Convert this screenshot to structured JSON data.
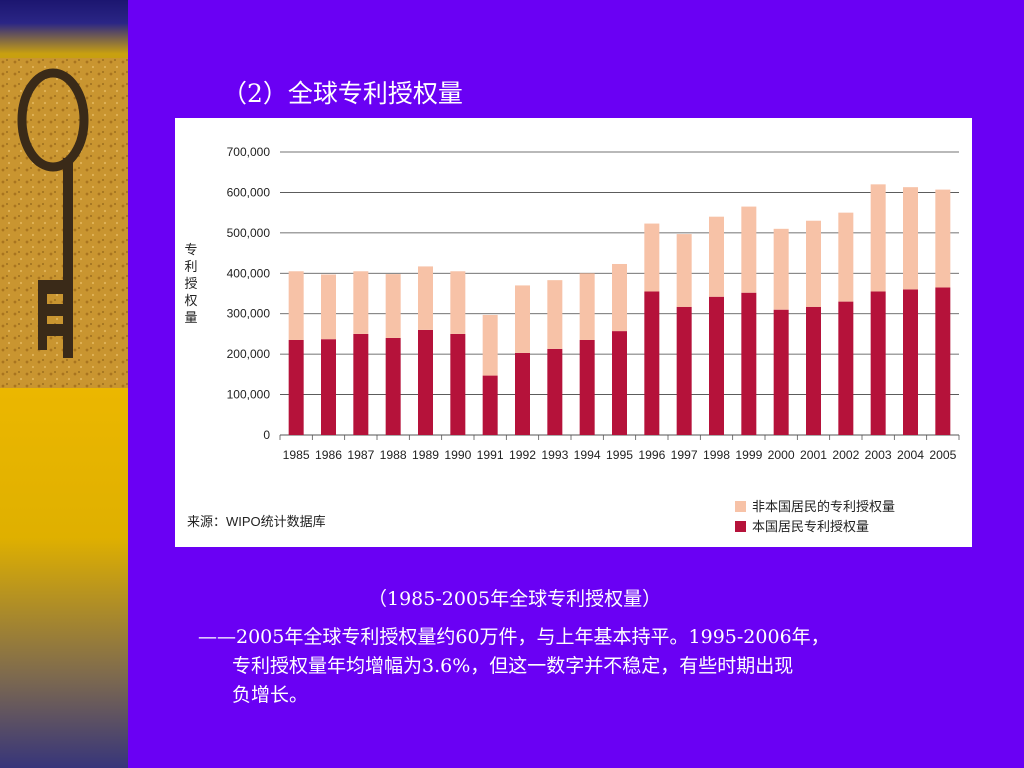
{
  "slide": {
    "title": "（2）全球专利授权量",
    "caption": "（1985-2005年全球专利授权量）",
    "desc_lines": [
      "——2005年全球专利授权量约60万件，与上年基本持平。1995-2006年，",
      "专利授权量年均增幅为3.6%，但这一数字并不稳定，有些时期出现",
      "负增长。"
    ]
  },
  "colors": {
    "background": "#6a00f4",
    "resident": "#b5123a",
    "nonresident": "#f7c2a7",
    "text_light": "#ffffff"
  },
  "chart_data": {
    "type": "bar",
    "stacked": true,
    "ylabel": "专利授权量",
    "source": "来源：WIPO统计数据库",
    "ylim": [
      0,
      700000
    ],
    "yticks": [
      "0",
      "100,000",
      "200,000",
      "300,000",
      "400,000",
      "500,000",
      "600,000",
      "700,000"
    ],
    "grid": true,
    "legend_position": "bottom-right",
    "categories": [
      "1985",
      "1986",
      "1987",
      "1988",
      "1989",
      "1990",
      "1991",
      "1992",
      "1993",
      "1994",
      "1995",
      "1996",
      "1997",
      "1998",
      "1999",
      "2000",
      "2001",
      "2002",
      "2003",
      "2004",
      "2005"
    ],
    "series": [
      {
        "name": "本国居民专利授权量",
        "color": "#b5123a",
        "values": [
          235000,
          237000,
          250000,
          240000,
          260000,
          250000,
          147000,
          203000,
          213000,
          235000,
          257000,
          355000,
          317000,
          342000,
          352000,
          310000,
          317000,
          330000,
          355000,
          360000,
          365000
        ]
      },
      {
        "name": "非本国居民的专利授权量",
        "color": "#f7c2a7",
        "values": [
          170000,
          160000,
          155000,
          158000,
          157000,
          155000,
          150000,
          167000,
          170000,
          165000,
          166000,
          168000,
          180000,
          198000,
          213000,
          200000,
          213000,
          220000,
          265000,
          253000,
          242000
        ]
      }
    ],
    "legend": [
      {
        "label": "非本国居民的专利授权量",
        "color": "#f7c2a7"
      },
      {
        "label": "本国居民专利授权量",
        "color": "#b5123a"
      }
    ]
  }
}
